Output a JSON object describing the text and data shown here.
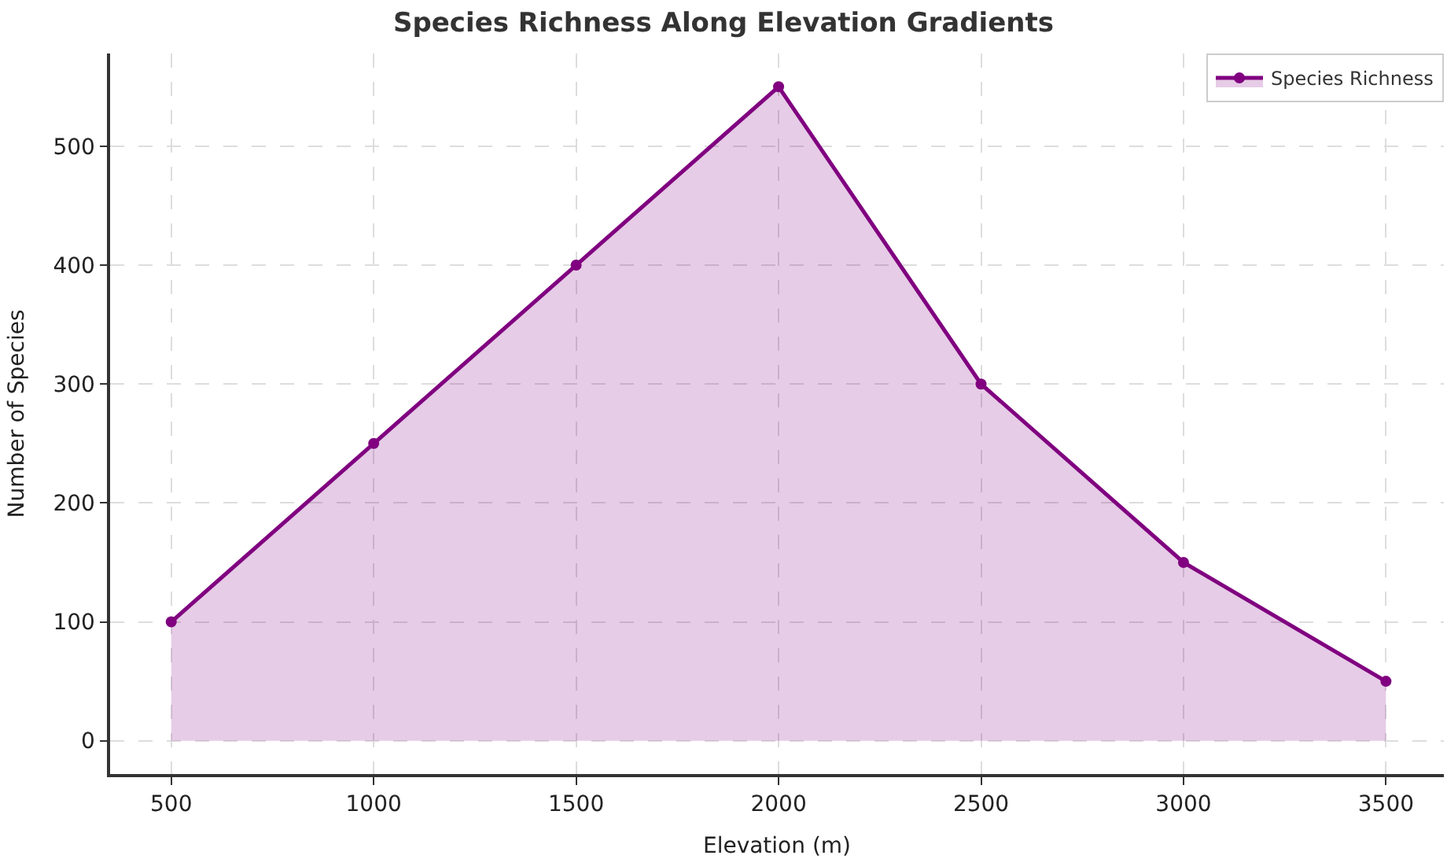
{
  "chart_data": {
    "type": "area",
    "title": "Species Richness Along Elevation Gradients",
    "xlabel": "Elevation (m)",
    "ylabel": "Number of Species",
    "x": [
      500,
      1000,
      1500,
      2000,
      2500,
      3000,
      3500
    ],
    "series": [
      {
        "name": "Species Richness",
        "color": "#800080",
        "values": [
          100,
          250,
          400,
          550,
          300,
          150,
          50
        ]
      }
    ],
    "xlim": [
      349,
      3643
    ],
    "xticks": [
      500,
      1000,
      1500,
      2000,
      2500,
      3000,
      3500
    ],
    "ylim": [
      -28,
      578
    ],
    "yticks": [
      0,
      100,
      200,
      300,
      400,
      500
    ],
    "grid": true,
    "legend": "top right",
    "marker": "circle",
    "line_style": "solid"
  }
}
